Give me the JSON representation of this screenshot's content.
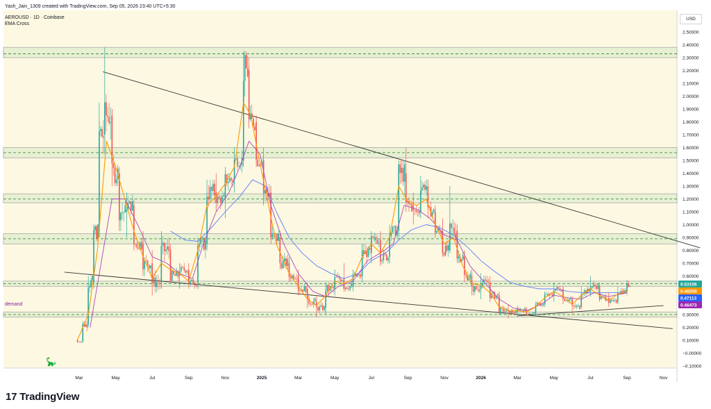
{
  "header": {
    "created_line": "Yash_Jain_1309 created with TradingView.com, Sep 05, 2026 23:40 UTC+5:30",
    "symbol_line": "AEROUSD · 1D · Coinbase",
    "indicator_line": "EMA Cross"
  },
  "currency_button": "USD",
  "annotation_demand": "demand",
  "brand": {
    "logo_glyph": "17",
    "name": "TradingView"
  },
  "colors": {
    "background": "#fdf8e1",
    "zone_fill": "#d6e9c6",
    "zone_border": "#a9a9a9",
    "zone_dash": "#2e7d32",
    "candle_up": "#26a69a",
    "candle_down": "#ef5350",
    "ema_fast": "#ff9800",
    "ema_mid": "#ab47bc",
    "ema_slow": "#5c7cfa",
    "trendline": "#333333",
    "badge_price": "#26a69a",
    "badge_orange": "#ff9800",
    "badge_blue": "#2962ff",
    "badge_purple": "#9c27b0"
  },
  "chart_data": {
    "type": "candlestick",
    "title": "AEROUSD · 1D · Coinbase",
    "y_axis": {
      "min": -0.1,
      "max": 2.5,
      "ticks": [
        "2.50000",
        "2.40000",
        "2.30000",
        "2.20000",
        "2.10000",
        "2.00000",
        "1.90000",
        "1.80000",
        "1.70000",
        "1.60000",
        "1.50000",
        "1.40000",
        "1.30000",
        "1.20000",
        "1.10000",
        "1.00000",
        "0.90000",
        "0.80000",
        "0.70000",
        "0.60000",
        "0.50000",
        "0.40000",
        "0.30000",
        "0.20000",
        "0.10000",
        "−0.00000",
        "−0.10000"
      ]
    },
    "x_axis": {
      "ticks": [
        "Mar",
        "May",
        "Jul",
        "Sep",
        "Nov",
        "2025",
        "Mar",
        "May",
        "Jul",
        "Sep",
        "Nov",
        "2026",
        "Mar",
        "May",
        "Jul",
        "Sep",
        "Nov"
      ],
      "tick_months_index": [
        2,
        4,
        6,
        8,
        10,
        12,
        14,
        16,
        18,
        20,
        22,
        24,
        26,
        28,
        30,
        32,
        34
      ],
      "bold_ticks": [
        "2025",
        "2026"
      ],
      "start": "2024-01",
      "months_shown": 36
    },
    "price_series_monthly": [
      {
        "m": 1.9,
        "o": 0.1,
        "h": 0.11,
        "l": 0.08,
        "c": 0.09
      },
      {
        "m": 2.2,
        "o": 0.09,
        "h": 0.25,
        "l": 0.08,
        "c": 0.22
      },
      {
        "m": 2.5,
        "o": 0.22,
        "h": 0.6,
        "l": 0.2,
        "c": 0.55
      },
      {
        "m": 2.8,
        "o": 0.55,
        "h": 1.0,
        "l": 0.5,
        "c": 0.95
      },
      {
        "m": 3.1,
        "o": 0.95,
        "h": 1.95,
        "l": 0.9,
        "c": 1.7
      },
      {
        "m": 3.4,
        "o": 1.7,
        "h": 2.38,
        "l": 1.55,
        "c": 1.85
      },
      {
        "m": 3.8,
        "o": 1.85,
        "h": 1.9,
        "l": 1.3,
        "c": 1.4
      },
      {
        "m": 4.2,
        "o": 1.4,
        "h": 1.45,
        "l": 0.95,
        "c": 1.1
      },
      {
        "m": 4.6,
        "o": 1.1,
        "h": 1.25,
        "l": 0.9,
        "c": 1.15
      },
      {
        "m": 5.0,
        "o": 1.15,
        "h": 1.2,
        "l": 0.8,
        "c": 0.85
      },
      {
        "m": 5.5,
        "o": 0.85,
        "h": 0.95,
        "l": 0.6,
        "c": 0.7
      },
      {
        "m": 6.0,
        "o": 0.7,
        "h": 0.8,
        "l": 0.45,
        "c": 0.55
      },
      {
        "m": 6.5,
        "o": 0.55,
        "h": 0.95,
        "l": 0.5,
        "c": 0.8
      },
      {
        "m": 7.0,
        "o": 0.8,
        "h": 0.85,
        "l": 0.55,
        "c": 0.6
      },
      {
        "m": 7.5,
        "o": 0.6,
        "h": 0.7,
        "l": 0.5,
        "c": 0.65
      },
      {
        "m": 8.0,
        "o": 0.65,
        "h": 0.7,
        "l": 0.5,
        "c": 0.55
      },
      {
        "m": 8.5,
        "o": 0.55,
        "h": 0.9,
        "l": 0.5,
        "c": 0.85
      },
      {
        "m": 9.0,
        "o": 0.85,
        "h": 1.35,
        "l": 0.8,
        "c": 1.25
      },
      {
        "m": 9.5,
        "o": 1.25,
        "h": 1.4,
        "l": 1.1,
        "c": 1.2
      },
      {
        "m": 10.0,
        "o": 1.2,
        "h": 1.45,
        "l": 1.05,
        "c": 1.35
      },
      {
        "m": 10.5,
        "o": 1.35,
        "h": 1.6,
        "l": 1.25,
        "c": 1.5
      },
      {
        "m": 11.0,
        "o": 1.5,
        "h": 2.35,
        "l": 1.45,
        "c": 2.2
      },
      {
        "m": 11.3,
        "o": 2.2,
        "h": 2.3,
        "l": 1.75,
        "c": 1.8
      },
      {
        "m": 11.7,
        "o": 1.8,
        "h": 1.85,
        "l": 1.45,
        "c": 1.5
      },
      {
        "m": 12.1,
        "o": 1.5,
        "h": 1.6,
        "l": 1.15,
        "c": 1.25
      },
      {
        "m": 12.5,
        "o": 1.25,
        "h": 1.3,
        "l": 0.85,
        "c": 0.9
      },
      {
        "m": 13.0,
        "o": 0.9,
        "h": 0.95,
        "l": 0.65,
        "c": 0.7
      },
      {
        "m": 13.5,
        "o": 0.7,
        "h": 0.75,
        "l": 0.55,
        "c": 0.6
      },
      {
        "m": 14.0,
        "o": 0.6,
        "h": 0.65,
        "l": 0.45,
        "c": 0.5
      },
      {
        "m": 14.5,
        "o": 0.5,
        "h": 0.55,
        "l": 0.35,
        "c": 0.4
      },
      {
        "m": 15.0,
        "o": 0.4,
        "h": 0.45,
        "l": 0.28,
        "c": 0.35
      },
      {
        "m": 15.5,
        "o": 0.35,
        "h": 0.55,
        "l": 0.3,
        "c": 0.5
      },
      {
        "m": 16.0,
        "o": 0.5,
        "h": 0.65,
        "l": 0.45,
        "c": 0.58
      },
      {
        "m": 16.5,
        "o": 0.58,
        "h": 0.7,
        "l": 0.48,
        "c": 0.52
      },
      {
        "m": 17.0,
        "o": 0.52,
        "h": 0.65,
        "l": 0.48,
        "c": 0.6
      },
      {
        "m": 17.5,
        "o": 0.6,
        "h": 0.85,
        "l": 0.55,
        "c": 0.78
      },
      {
        "m": 18.0,
        "o": 0.78,
        "h": 0.95,
        "l": 0.7,
        "c": 0.88
      },
      {
        "m": 18.5,
        "o": 0.88,
        "h": 0.95,
        "l": 0.68,
        "c": 0.75
      },
      {
        "m": 19.0,
        "o": 0.75,
        "h": 1.0,
        "l": 0.7,
        "c": 0.95
      },
      {
        "m": 19.5,
        "o": 0.95,
        "h": 1.5,
        "l": 0.9,
        "c": 1.4
      },
      {
        "m": 19.9,
        "o": 1.4,
        "h": 1.6,
        "l": 1.1,
        "c": 1.15
      },
      {
        "m": 20.3,
        "o": 1.15,
        "h": 1.25,
        "l": 1.0,
        "c": 1.1
      },
      {
        "m": 20.7,
        "o": 1.1,
        "h": 1.38,
        "l": 1.05,
        "c": 1.3
      },
      {
        "m": 21.1,
        "o": 1.3,
        "h": 1.35,
        "l": 1.05,
        "c": 1.1
      },
      {
        "m": 21.5,
        "o": 1.1,
        "h": 1.15,
        "l": 0.9,
        "c": 0.95
      },
      {
        "m": 21.9,
        "o": 0.95,
        "h": 1.05,
        "l": 0.75,
        "c": 0.8
      },
      {
        "m": 22.3,
        "o": 0.8,
        "h": 1.3,
        "l": 0.78,
        "c": 0.95
      },
      {
        "m": 22.7,
        "o": 0.95,
        "h": 1.0,
        "l": 0.7,
        "c": 0.75
      },
      {
        "m": 23.1,
        "o": 0.75,
        "h": 0.8,
        "l": 0.55,
        "c": 0.6
      },
      {
        "m": 23.5,
        "o": 0.6,
        "h": 0.65,
        "l": 0.45,
        "c": 0.5
      },
      {
        "m": 24.0,
        "o": 0.5,
        "h": 0.62,
        "l": 0.42,
        "c": 0.55
      },
      {
        "m": 24.5,
        "o": 0.55,
        "h": 0.6,
        "l": 0.4,
        "c": 0.45
      },
      {
        "m": 25.0,
        "o": 0.45,
        "h": 0.48,
        "l": 0.3,
        "c": 0.33
      },
      {
        "m": 25.5,
        "o": 0.33,
        "h": 0.38,
        "l": 0.27,
        "c": 0.32
      },
      {
        "m": 26.0,
        "o": 0.32,
        "h": 0.37,
        "l": 0.28,
        "c": 0.34
      },
      {
        "m": 26.5,
        "o": 0.34,
        "h": 0.36,
        "l": 0.29,
        "c": 0.31
      },
      {
        "m": 27.0,
        "o": 0.31,
        "h": 0.4,
        "l": 0.3,
        "c": 0.38
      },
      {
        "m": 27.5,
        "o": 0.38,
        "h": 0.48,
        "l": 0.36,
        "c": 0.45
      },
      {
        "m": 28.0,
        "o": 0.45,
        "h": 0.55,
        "l": 0.4,
        "c": 0.5
      },
      {
        "m": 28.5,
        "o": 0.5,
        "h": 0.52,
        "l": 0.38,
        "c": 0.42
      },
      {
        "m": 29.0,
        "o": 0.42,
        "h": 0.44,
        "l": 0.3,
        "c": 0.36
      },
      {
        "m": 29.5,
        "o": 0.36,
        "h": 0.52,
        "l": 0.34,
        "c": 0.48
      },
      {
        "m": 30.0,
        "o": 0.48,
        "h": 0.6,
        "l": 0.44,
        "c": 0.52
      },
      {
        "m": 30.5,
        "o": 0.52,
        "h": 0.55,
        "l": 0.4,
        "c": 0.43
      },
      {
        "m": 31.0,
        "o": 0.43,
        "h": 0.47,
        "l": 0.36,
        "c": 0.4
      },
      {
        "m": 31.5,
        "o": 0.4,
        "h": 0.52,
        "l": 0.38,
        "c": 0.48
      },
      {
        "m": 32.0,
        "o": 0.48,
        "h": 0.57,
        "l": 0.45,
        "c": 0.53
      }
    ],
    "ema_fast": [
      [
        1.9,
        0.1
      ],
      [
        2.5,
        0.3
      ],
      [
        3.0,
        0.8
      ],
      [
        3.5,
        1.65
      ],
      [
        4.0,
        1.45
      ],
      [
        4.5,
        1.2
      ],
      [
        5.0,
        0.95
      ],
      [
        5.5,
        0.75
      ],
      [
        6.0,
        0.58
      ],
      [
        6.5,
        0.7
      ],
      [
        7.0,
        0.65
      ],
      [
        7.5,
        0.62
      ],
      [
        8.0,
        0.56
      ],
      [
        8.5,
        0.8
      ],
      [
        9.0,
        1.15
      ],
      [
        9.5,
        1.22
      ],
      [
        10.0,
        1.32
      ],
      [
        10.5,
        1.45
      ],
      [
        11.0,
        1.95
      ],
      [
        11.4,
        1.85
      ],
      [
        11.8,
        1.55
      ],
      [
        12.3,
        1.2
      ],
      [
        12.8,
        0.85
      ],
      [
        13.5,
        0.62
      ],
      [
        14.0,
        0.52
      ],
      [
        14.5,
        0.42
      ],
      [
        15.0,
        0.37
      ],
      [
        15.5,
        0.45
      ],
      [
        16.0,
        0.56
      ],
      [
        16.5,
        0.54
      ],
      [
        17.0,
        0.58
      ],
      [
        17.5,
        0.75
      ],
      [
        18.0,
        0.85
      ],
      [
        18.5,
        0.78
      ],
      [
        19.0,
        0.9
      ],
      [
        19.5,
        1.3
      ],
      [
        20.0,
        1.18
      ],
      [
        20.5,
        1.15
      ],
      [
        21.0,
        1.2
      ],
      [
        21.5,
        1.0
      ],
      [
        22.0,
        0.85
      ],
      [
        22.5,
        0.9
      ],
      [
        23.0,
        0.68
      ],
      [
        23.5,
        0.54
      ],
      [
        24.0,
        0.53
      ],
      [
        24.5,
        0.47
      ],
      [
        25.0,
        0.36
      ],
      [
        25.5,
        0.33
      ],
      [
        26.0,
        0.33
      ],
      [
        26.5,
        0.32
      ],
      [
        27.0,
        0.36
      ],
      [
        27.5,
        0.43
      ],
      [
        28.0,
        0.48
      ],
      [
        28.5,
        0.44
      ],
      [
        29.0,
        0.38
      ],
      [
        29.5,
        0.45
      ],
      [
        30.0,
        0.5
      ],
      [
        30.5,
        0.45
      ],
      [
        31.0,
        0.41
      ],
      [
        31.5,
        0.46
      ],
      [
        32.0,
        0.48
      ]
    ],
    "ema_mid": [
      [
        2.6,
        0.2
      ],
      [
        3.2,
        0.7
      ],
      [
        3.8,
        1.2
      ],
      [
        4.5,
        1.2
      ],
      [
        5.2,
        1.0
      ],
      [
        6.0,
        0.75
      ],
      [
        6.8,
        0.7
      ],
      [
        7.5,
        0.62
      ],
      [
        8.2,
        0.58
      ],
      [
        8.8,
        0.85
      ],
      [
        9.5,
        1.1
      ],
      [
        10.2,
        1.25
      ],
      [
        10.8,
        1.45
      ],
      [
        11.3,
        1.65
      ],
      [
        11.9,
        1.55
      ],
      [
        12.5,
        1.15
      ],
      [
        13.2,
        0.85
      ],
      [
        14.0,
        0.62
      ],
      [
        14.8,
        0.48
      ],
      [
        15.5,
        0.44
      ],
      [
        16.2,
        0.52
      ],
      [
        17.0,
        0.56
      ],
      [
        17.8,
        0.72
      ],
      [
        18.5,
        0.78
      ],
      [
        19.2,
        0.85
      ],
      [
        19.8,
        1.15
      ],
      [
        20.5,
        1.12
      ],
      [
        21.2,
        1.05
      ],
      [
        22.0,
        0.92
      ],
      [
        22.7,
        0.88
      ],
      [
        23.4,
        0.68
      ],
      [
        24.2,
        0.55
      ],
      [
        25.0,
        0.42
      ],
      [
        25.8,
        0.35
      ],
      [
        26.5,
        0.33
      ],
      [
        27.3,
        0.38
      ],
      [
        28.0,
        0.45
      ],
      [
        28.8,
        0.43
      ],
      [
        29.5,
        0.42
      ],
      [
        30.2,
        0.47
      ],
      [
        31.0,
        0.44
      ],
      [
        32.0,
        0.47
      ]
    ],
    "ema_slow": [
      [
        7.0,
        0.95
      ],
      [
        7.8,
        0.88
      ],
      [
        8.5,
        0.87
      ],
      [
        9.2,
        0.97
      ],
      [
        10.0,
        1.1
      ],
      [
        10.8,
        1.22
      ],
      [
        11.5,
        1.35
      ],
      [
        12.2,
        1.3
      ],
      [
        12.8,
        1.1
      ],
      [
        13.5,
        0.9
      ],
      [
        14.2,
        0.78
      ],
      [
        15.0,
        0.68
      ],
      [
        15.8,
        0.62
      ],
      [
        16.5,
        0.58
      ],
      [
        17.3,
        0.62
      ],
      [
        18.0,
        0.72
      ],
      [
        18.8,
        0.78
      ],
      [
        19.5,
        0.88
      ],
      [
        20.2,
        0.96
      ],
      [
        21.0,
        1.0
      ],
      [
        21.7,
        0.98
      ],
      [
        22.5,
        0.92
      ],
      [
        23.3,
        0.82
      ],
      [
        24.0,
        0.72
      ],
      [
        24.8,
        0.63
      ],
      [
        25.6,
        0.55
      ],
      [
        26.4,
        0.52
      ],
      [
        27.2,
        0.5
      ],
      [
        28.0,
        0.5
      ],
      [
        28.8,
        0.48
      ],
      [
        29.6,
        0.47
      ],
      [
        30.4,
        0.47
      ],
      [
        31.2,
        0.47
      ],
      [
        32.0,
        0.47
      ]
    ],
    "zones": [
      {
        "lo": 2.3,
        "hi": 2.38,
        "mid": 2.33
      },
      {
        "lo": 1.52,
        "hi": 1.6,
        "mid": 1.56
      },
      {
        "lo": 1.17,
        "hi": 1.24,
        "mid": 1.2
      },
      {
        "lo": 0.85,
        "hi": 0.93,
        "mid": 0.89
      },
      {
        "lo": 0.52,
        "hi": 0.56,
        "mid": 0.54
      },
      {
        "lo": 0.28,
        "hi": 0.32,
        "mid": 0.3
      }
    ],
    "trendlines": [
      {
        "m1": 3.3,
        "v1": 2.19,
        "m2": 36.0,
        "v2": 0.82
      },
      {
        "m1": 1.2,
        "v1": 0.63,
        "m2": 34.5,
        "v2": 0.19
      },
      {
        "m1": 26.0,
        "v1": 0.29,
        "m2": 34.0,
        "v2": 0.37
      }
    ],
    "last_values": [
      {
        "label": "0.53106",
        "value": 0.53106,
        "color": "#26a69a"
      },
      {
        "label": "0.48250",
        "value": 0.4825,
        "color": "#ff9800"
      },
      {
        "label": "0.47113",
        "value": 0.47113,
        "color": "#2962ff"
      },
      {
        "label": "0.46473",
        "value": 0.46473,
        "color": "#9c27b0"
      }
    ]
  }
}
